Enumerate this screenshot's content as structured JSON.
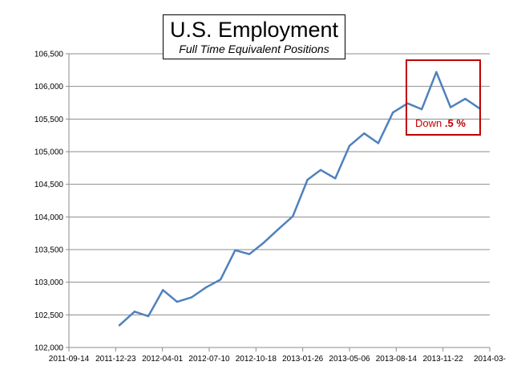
{
  "chart_data": {
    "type": "line",
    "title": "U.S. Employment",
    "subtitle": "Full Time Equivalent Positions",
    "xlabel": "",
    "ylabel": "",
    "ylim": [
      102000,
      106500
    ],
    "grid": "horizontal",
    "yticks": [
      "102,000",
      "102,500",
      "103,000",
      "103,500",
      "104,000",
      "104,500",
      "105,000",
      "105,500",
      "106,000",
      "106,500"
    ],
    "xticks": [
      "2011-09-14",
      "2011-12-23",
      "2012-04-01",
      "2012-07-10",
      "2012-10-18",
      "2013-01-26",
      "2013-05-06",
      "2013-08-14",
      "2013-11-22",
      "2014-03-"
    ],
    "annotation": {
      "prefix": "Down ",
      "value": ".5 %"
    },
    "series": [
      {
        "color": "#4f81bd",
        "points": [
          [
            "2011-12-30",
            102340
          ],
          [
            "2012-01-31",
            102550
          ],
          [
            "2012-02-29",
            102480
          ],
          [
            "2012-03-31",
            102880
          ],
          [
            "2012-04-30",
            102700
          ],
          [
            "2012-05-31",
            102770
          ],
          [
            "2012-06-30",
            102920
          ],
          [
            "2012-07-31",
            103040
          ],
          [
            "2012-08-31",
            103490
          ],
          [
            "2012-09-30",
            103430
          ],
          [
            "2012-10-31",
            103610
          ],
          [
            "2012-11-30",
            103810
          ],
          [
            "2012-12-31",
            104010
          ],
          [
            "2013-01-31",
            104570
          ],
          [
            "2013-02-28",
            104720
          ],
          [
            "2013-03-31",
            104590
          ],
          [
            "2013-04-30",
            105090
          ],
          [
            "2013-05-31",
            105280
          ],
          [
            "2013-06-30",
            105130
          ],
          [
            "2013-07-31",
            105600
          ],
          [
            "2013-08-31",
            105740
          ],
          [
            "2013-09-30",
            105650
          ],
          [
            "2013-10-31",
            106220
          ],
          [
            "2013-11-30",
            105680
          ],
          [
            "2013-12-31",
            105810
          ],
          [
            "2014-01-31",
            105660
          ]
        ]
      }
    ]
  }
}
